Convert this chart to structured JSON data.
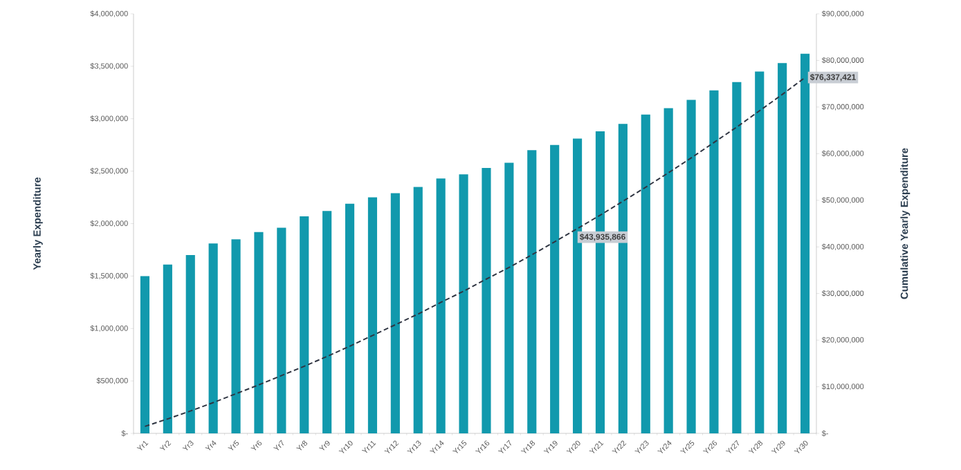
{
  "chart_data": {
    "type": "bar",
    "ylabel": "Yearly Expenditure",
    "y2label": "Cumulative Yearly Expenditure",
    "categories": [
      "Yr1",
      "Yr2",
      "Yr3",
      "Yr4",
      "Yr5",
      "Yr6",
      "Yr7",
      "Yr8",
      "Yr9",
      "Yr10",
      "Yr11",
      "Yr12",
      "Yr13",
      "Yr14",
      "Yr15",
      "Yr16",
      "Yr17",
      "Yr18",
      "Yr19",
      "Yr20",
      "Yr21",
      "Yr22",
      "Yr23",
      "Yr24",
      "Yr25",
      "Yr26",
      "Yr27",
      "Yr28",
      "Yr29",
      "Yr30"
    ],
    "ylim": [
      0,
      4000000
    ],
    "yticks": [
      {
        "value": 0,
        "label": "$-"
      },
      {
        "value": 500000,
        "label": "$500,000"
      },
      {
        "value": 1000000,
        "label": "$1,000,000"
      },
      {
        "value": 1500000,
        "label": "$1,500,000"
      },
      {
        "value": 2000000,
        "label": "$2,000,000"
      },
      {
        "value": 2500000,
        "label": "$2,500,000"
      },
      {
        "value": 3000000,
        "label": "$3,000,000"
      },
      {
        "value": 3500000,
        "label": "$3,500,000"
      },
      {
        "value": 4000000,
        "label": "$4,000,000"
      }
    ],
    "y2lim": [
      0,
      90000000
    ],
    "y2ticks": [
      {
        "value": 0,
        "label": "$-"
      },
      {
        "value": 10000000,
        "label": "$10,000,000"
      },
      {
        "value": 20000000,
        "label": "$20,000,000"
      },
      {
        "value": 30000000,
        "label": "$30,000,000"
      },
      {
        "value": 40000000,
        "label": "$40,000,000"
      },
      {
        "value": 50000000,
        "label": "$50,000,000"
      },
      {
        "value": 60000000,
        "label": "$60,000,000"
      },
      {
        "value": 70000000,
        "label": "$70,000,000"
      },
      {
        "value": 80000000,
        "label": "$80,000,000"
      },
      {
        "value": 90000000,
        "label": "$90,000,000"
      }
    ],
    "series": [
      {
        "color": "#1199ad",
        "values": [
          1500000,
          1610000,
          1700000,
          1810000,
          1850000,
          1920000,
          1960000,
          2070000,
          2120000,
          2190000,
          2250000,
          2290000,
          2350000,
          2430000,
          2470000,
          2530000,
          2580000,
          2700000,
          2750000,
          2810000,
          2880000,
          2950000,
          3040000,
          3100000,
          3180000,
          3270000,
          3350000,
          3450000,
          3530000,
          3620000
        ]
      },
      {
        "type": "line",
        "axis": "y2",
        "color": "#2f3542",
        "line_style": "dashed",
        "values": [
          1500000,
          3100000,
          4800000,
          6600000,
          8500000,
          10400000,
          12400000,
          14400000,
          16500000,
          18700000,
          21000000,
          23300000,
          25600000,
          28100000,
          30500000,
          33100000,
          35600000,
          38300000,
          41100000,
          43935866,
          46800000,
          49800000,
          52800000,
          55900000,
          59100000,
          62400000,
          65700000,
          69200000,
          72700000,
          76337421
        ],
        "value_labels": [
          null,
          null,
          null,
          null,
          null,
          null,
          null,
          null,
          null,
          null,
          null,
          null,
          null,
          null,
          null,
          null,
          null,
          null,
          null,
          "$43,935,866",
          null,
          null,
          null,
          null,
          null,
          null,
          null,
          null,
          null,
          "$76,337,421"
        ]
      }
    ]
  }
}
